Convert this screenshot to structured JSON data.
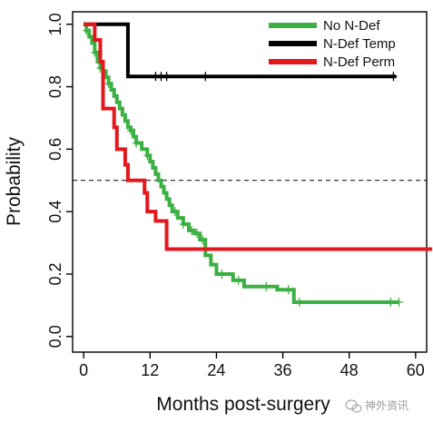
{
  "chart_data": {
    "type": "line",
    "title": "",
    "xlabel": "Months post-surgery",
    "ylabel": "Probability",
    "xlim": [
      -2,
      62
    ],
    "ylim": [
      -0.05,
      1.04
    ],
    "xticks": [
      0,
      12,
      24,
      36,
      48,
      60
    ],
    "yticks": [
      0.0,
      0.2,
      0.4,
      0.6,
      0.8,
      1.0
    ],
    "xtick_labels": [
      "0",
      "12",
      "24",
      "36",
      "48",
      "60"
    ],
    "ytick_labels": [
      "0.0",
      "0.2",
      "0.4",
      "0.6",
      "0.8",
      "1.0"
    ],
    "reference_line": {
      "y": 0.5,
      "style": "dashed"
    },
    "grid": false,
    "legend": {
      "placement": "top-right"
    },
    "series": [
      {
        "name": "No N-Def",
        "color": "#3cb043",
        "steps": [
          [
            0,
            1.0
          ],
          [
            0.5,
            0.98
          ],
          [
            1,
            0.96
          ],
          [
            1.5,
            0.94
          ],
          [
            2,
            0.91
          ],
          [
            2.5,
            0.88
          ],
          [
            3,
            0.86
          ],
          [
            3.5,
            0.85
          ],
          [
            4,
            0.83
          ],
          [
            4.5,
            0.81
          ],
          [
            5,
            0.79
          ],
          [
            5.5,
            0.77
          ],
          [
            6,
            0.75
          ],
          [
            6.5,
            0.73
          ],
          [
            7,
            0.71
          ],
          [
            7.5,
            0.69
          ],
          [
            8,
            0.67
          ],
          [
            8.5,
            0.66
          ],
          [
            9,
            0.64
          ],
          [
            9.5,
            0.62
          ],
          [
            10.5,
            0.6
          ],
          [
            11.5,
            0.58
          ],
          [
            12,
            0.56
          ],
          [
            12.5,
            0.54
          ],
          [
            13,
            0.52
          ],
          [
            13.5,
            0.5
          ],
          [
            14,
            0.48
          ],
          [
            14.5,
            0.46
          ],
          [
            15,
            0.44
          ],
          [
            15.5,
            0.42
          ],
          [
            16,
            0.4
          ],
          [
            17,
            0.38
          ],
          [
            18,
            0.36
          ],
          [
            19,
            0.34
          ],
          [
            20,
            0.33
          ],
          [
            21,
            0.31
          ],
          [
            22,
            0.26
          ],
          [
            23,
            0.23
          ],
          [
            24,
            0.2
          ],
          [
            27,
            0.18
          ],
          [
            29,
            0.16
          ],
          [
            35,
            0.15
          ],
          [
            38,
            0.11
          ],
          [
            57,
            0.11
          ]
        ],
        "censored": [
          [
            0.5,
            0.98
          ],
          [
            2,
            0.91
          ],
          [
            3,
            0.86
          ],
          [
            4.5,
            0.81
          ],
          [
            8.5,
            0.66
          ],
          [
            9.5,
            0.62
          ],
          [
            11.5,
            0.58
          ],
          [
            16.5,
            0.4
          ],
          [
            18,
            0.36
          ],
          [
            19.5,
            0.34
          ],
          [
            20.5,
            0.33
          ],
          [
            21.5,
            0.31
          ],
          [
            25,
            0.2
          ],
          [
            28,
            0.18
          ],
          [
            33,
            0.16
          ],
          [
            37,
            0.15
          ],
          [
            39,
            0.11
          ],
          [
            55.5,
            0.11
          ],
          [
            57,
            0.11
          ]
        ]
      },
      {
        "name": "N-Def Temp",
        "color": "#000000",
        "steps": [
          [
            0,
            1.0
          ],
          [
            8,
            0.833
          ],
          [
            56.5,
            0.833
          ]
        ],
        "censored": [
          [
            13,
            0.833
          ],
          [
            14,
            0.833
          ],
          [
            15,
            0.833
          ],
          [
            22,
            0.833
          ],
          [
            56,
            0.833
          ]
        ]
      },
      {
        "name": "N-Def Perm",
        "color": "#e3171c",
        "steps": [
          [
            0,
            1.0
          ],
          [
            2,
            0.95
          ],
          [
            3,
            0.88
          ],
          [
            3.5,
            0.73
          ],
          [
            5.5,
            0.67
          ],
          [
            6,
            0.6
          ],
          [
            7.5,
            0.55
          ],
          [
            8,
            0.5
          ],
          [
            11,
            0.46
          ],
          [
            11.5,
            0.4
          ],
          [
            13,
            0.37
          ],
          [
            15,
            0.28
          ],
          [
            63,
            0.28
          ]
        ],
        "censored": []
      }
    ]
  },
  "watermark": "神外资讯"
}
